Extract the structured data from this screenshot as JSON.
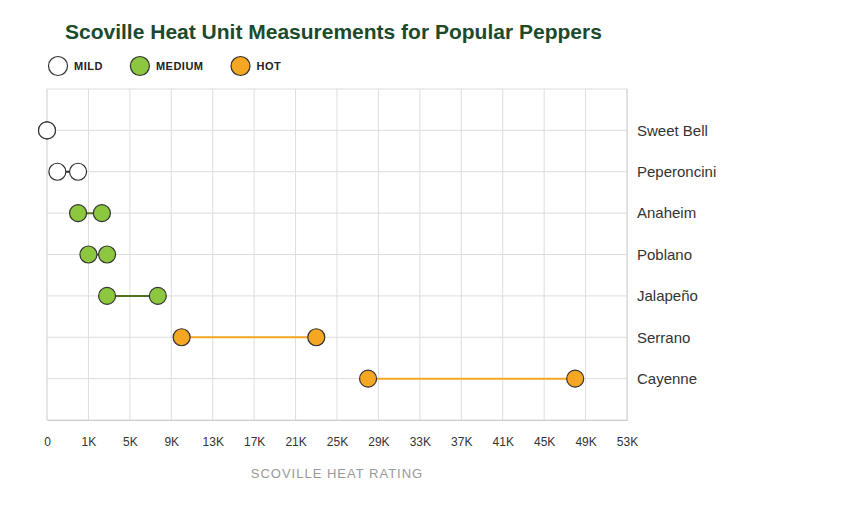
{
  "chart_data": {
    "type": "dumbbell",
    "title": "Scoville Heat Unit Measurements for Popular Peppers",
    "x_label": "SCOVILLE HEAT RATING",
    "orientation": "horizontal",
    "grid": true,
    "legend": "top-left",
    "marker": "circle",
    "categories": [
      "Sweet Bell",
      "Peperoncini",
      "Anaheim",
      "Poblano",
      "Jalapeño",
      "Serrano",
      "Cayenne"
    ],
    "series": [
      {
        "name": "MILD",
        "color": "#ffffff",
        "low": [
          0,
          250,
          null,
          null,
          null,
          null,
          null
        ],
        "high": [
          0,
          750,
          null,
          null,
          null,
          null,
          null
        ]
      },
      {
        "name": "MEDIUM",
        "color": "#8dc63f",
        "low": [
          null,
          null,
          750,
          1000,
          2800,
          null,
          null
        ],
        "high": [
          null,
          null,
          2300,
          2800,
          7700,
          null,
          null
        ]
      },
      {
        "name": "HOT",
        "color": "#f5a623",
        "low": [
          null,
          null,
          null,
          null,
          null,
          10000,
          28000
        ],
        "high": [
          null,
          null,
          null,
          null,
          null,
          23000,
          48000
        ]
      }
    ],
    "xlim": [
      0,
      53000
    ],
    "xticks": [
      0,
      {
        "value": 1000,
        "label": "1K"
      },
      {
        "value": 5000,
        "label": "5K"
      },
      {
        "value": 9000,
        "label": "9K"
      },
      {
        "value": 13000,
        "label": "13K"
      },
      {
        "value": 17000,
        "label": "17K"
      },
      {
        "value": 21000,
        "label": "21K"
      },
      {
        "value": 25000,
        "label": "25K"
      },
      {
        "value": 29000,
        "label": "29K"
      },
      {
        "value": 33000,
        "label": "33K"
      },
      {
        "value": 37000,
        "label": "37K"
      },
      {
        "value": 41000,
        "label": "41K"
      },
      {
        "value": 45000,
        "label": "45K"
      },
      {
        "value": 49000,
        "label": "49K"
      },
      {
        "value": 53000,
        "label": "53K"
      }
    ]
  }
}
